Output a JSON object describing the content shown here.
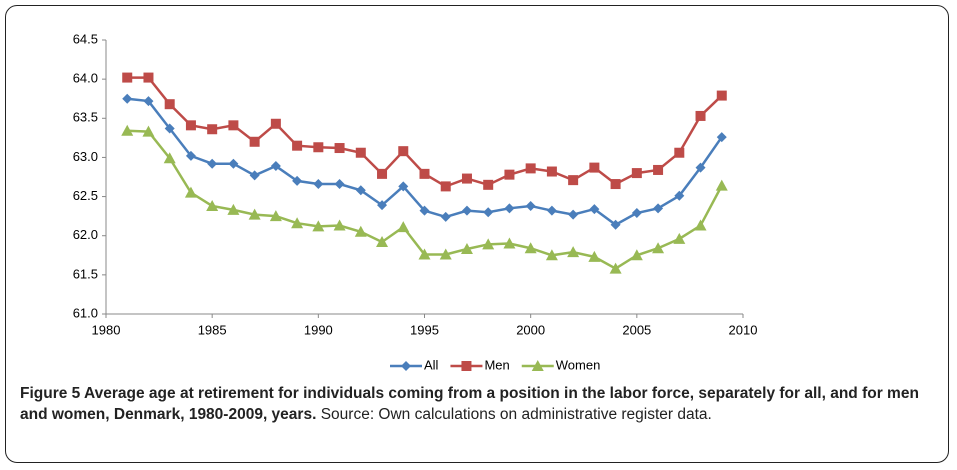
{
  "chart_data": {
    "type": "line",
    "x": [
      1981,
      1982,
      1983,
      1984,
      1985,
      1986,
      1987,
      1988,
      1989,
      1990,
      1991,
      1992,
      1993,
      1994,
      1995,
      1996,
      1997,
      1998,
      1999,
      2000,
      2001,
      2002,
      2003,
      2004,
      2005,
      2006,
      2007,
      2008,
      2009
    ],
    "series": [
      {
        "name": "All",
        "color": "#4a7ebb",
        "marker": "diamond",
        "values": [
          63.75,
          63.72,
          63.37,
          63.02,
          62.92,
          62.92,
          62.77,
          62.89,
          62.7,
          62.66,
          62.66,
          62.58,
          62.39,
          62.63,
          62.32,
          62.24,
          62.32,
          62.3,
          62.35,
          62.38,
          62.32,
          62.27,
          62.34,
          62.14,
          62.29,
          62.35,
          62.51,
          62.87,
          63.26
        ]
      },
      {
        "name": "Men",
        "color": "#be4b48",
        "marker": "square",
        "values": [
          64.02,
          64.02,
          63.68,
          63.41,
          63.36,
          63.41,
          63.2,
          63.43,
          63.15,
          63.13,
          63.12,
          63.06,
          62.79,
          63.08,
          62.79,
          62.63,
          62.73,
          62.65,
          62.78,
          62.86,
          62.82,
          62.71,
          62.87,
          62.66,
          62.8,
          62.84,
          63.06,
          63.53,
          63.79
        ]
      },
      {
        "name": "Women",
        "color": "#98b954",
        "marker": "triangle",
        "values": [
          63.34,
          63.33,
          62.99,
          62.55,
          62.38,
          62.33,
          62.27,
          62.25,
          62.16,
          62.12,
          62.13,
          62.05,
          61.92,
          62.11,
          61.76,
          61.76,
          61.83,
          61.89,
          61.9,
          61.84,
          61.75,
          61.79,
          61.73,
          61.58,
          61.75,
          61.84,
          61.96,
          62.13,
          62.64
        ]
      }
    ],
    "xlim": [
      1980,
      2010
    ],
    "xticks": [
      1980,
      1985,
      1990,
      1995,
      2000,
      2005,
      2010
    ],
    "ylim": [
      61,
      64.5
    ],
    "yticks": [
      {
        "value": 61,
        "label": "61.0"
      },
      61.5,
      {
        "value": 62,
        "label": "62.0"
      },
      62.5,
      {
        "value": 63,
        "label": "63.0"
      },
      63.5,
      {
        "value": 64,
        "label": "64.0"
      },
      64.5
    ],
    "grid": false,
    "legend": "bottom",
    "caption_title": "Figure 5 Average age at retirement for individuals coming from a position in the labor force, separately for all, and for men and women, Denmark, 1980-2009, years.",
    "caption_source": "Source: Own calculations on administrative register data."
  }
}
